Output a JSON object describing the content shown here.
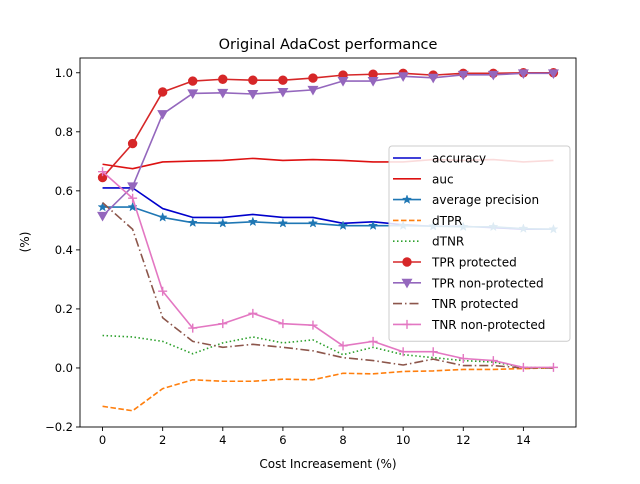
{
  "chart_data": {
    "type": "line",
    "title": "Original AdaCost performance",
    "xlabel": "Cost Increasement (%)",
    "ylabel": "(%)",
    "xlim": [
      -0.75,
      15.75
    ],
    "ylim": [
      -0.2,
      1.05
    ],
    "xticks": [
      0,
      2,
      4,
      6,
      8,
      10,
      12,
      14
    ],
    "yticks": [
      -0.2,
      0.0,
      0.2,
      0.4,
      0.6,
      0.8,
      1.0
    ],
    "ytick_labels": [
      "−0.2",
      "0.0",
      "0.2",
      "0.4",
      "0.6",
      "0.8",
      "1.0"
    ],
    "grid": false,
    "legend_position": "center-right",
    "x": [
      0,
      1,
      2,
      3,
      4,
      5,
      6,
      7,
      8,
      9,
      10,
      11,
      12,
      13,
      14,
      15
    ],
    "series": [
      {
        "name": "accuracy",
        "color": "#0000cc",
        "dash": "solid",
        "marker": "none",
        "values": [
          0.61,
          0.61,
          0.54,
          0.51,
          0.51,
          0.52,
          0.51,
          0.51,
          0.49,
          0.495,
          0.485,
          0.48,
          0.48,
          0.475,
          0.47,
          0.47
        ]
      },
      {
        "name": "auc",
        "color": "#dd1111",
        "dash": "solid",
        "marker": "none",
        "values": [
          0.69,
          0.675,
          0.698,
          0.701,
          0.703,
          0.71,
          0.703,
          0.706,
          0.703,
          0.698,
          0.698,
          0.706,
          0.703,
          0.706,
          0.698,
          0.703
        ]
      },
      {
        "name": "average precision",
        "color": "#1f77b4",
        "dash": "solid",
        "marker": "star",
        "values": [
          0.545,
          0.545,
          0.51,
          0.492,
          0.49,
          0.495,
          0.49,
          0.49,
          0.482,
          0.482,
          0.482,
          0.48,
          0.478,
          0.478,
          0.472,
          0.47
        ]
      },
      {
        "name": "dTPR",
        "color": "#ff7f0e",
        "dash": "dashed",
        "marker": "none",
        "values": [
          -0.13,
          -0.145,
          -0.07,
          -0.04,
          -0.045,
          -0.045,
          -0.038,
          -0.04,
          -0.018,
          -0.02,
          -0.012,
          -0.01,
          -0.005,
          -0.005,
          -0.002,
          0.0
        ]
      },
      {
        "name": "dTNR",
        "color": "#2ca02c",
        "dash": "dotted",
        "marker": "none",
        "values": [
          0.11,
          0.105,
          0.09,
          0.048,
          0.085,
          0.105,
          0.085,
          0.095,
          0.045,
          0.07,
          0.045,
          0.035,
          0.025,
          0.02,
          0.002,
          0.0
        ]
      },
      {
        "name": "TPR protected",
        "color": "#d62728",
        "dash": "solid",
        "marker": "circle",
        "values": [
          0.645,
          0.76,
          0.935,
          0.972,
          0.978,
          0.975,
          0.975,
          0.982,
          0.992,
          0.995,
          0.998,
          0.992,
          0.998,
          0.998,
          1.0,
          1.0
        ]
      },
      {
        "name": "TPR non-protected",
        "color": "#9467bd",
        "dash": "solid",
        "marker": "triangle-down",
        "values": [
          0.515,
          0.615,
          0.86,
          0.93,
          0.932,
          0.928,
          0.935,
          0.942,
          0.972,
          0.972,
          0.988,
          0.983,
          0.993,
          0.993,
          0.998,
          0.998
        ]
      },
      {
        "name": "TNR protected",
        "color": "#8c564b",
        "dash": "dashdot",
        "marker": "none",
        "values": [
          0.56,
          0.47,
          0.17,
          0.09,
          0.07,
          0.08,
          0.07,
          0.058,
          0.035,
          0.025,
          0.01,
          0.03,
          0.008,
          0.008,
          0.0,
          0.0
        ]
      },
      {
        "name": "TNR non-protected",
        "color": "#e377c2",
        "dash": "solid",
        "marker": "plus",
        "values": [
          0.665,
          0.575,
          0.26,
          0.135,
          0.15,
          0.185,
          0.15,
          0.145,
          0.075,
          0.09,
          0.055,
          0.055,
          0.032,
          0.025,
          0.002,
          0.002
        ]
      }
    ]
  }
}
